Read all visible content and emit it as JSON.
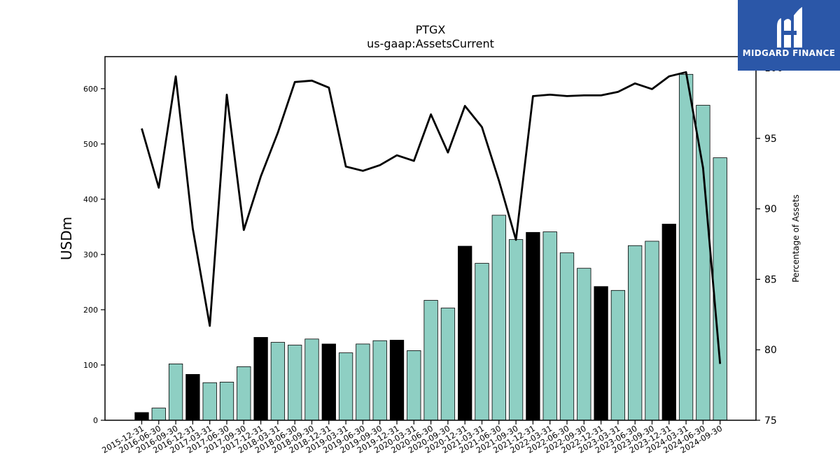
{
  "chart_data": {
    "type": "bar+line",
    "title": "PTGX",
    "subtitle": "us-gaap:AssetsCurrent",
    "ylabel": "USDm",
    "y2label": "Percentage of Assets",
    "ylim": [
      0,
      658
    ],
    "y2lim": [
      75,
      100.8
    ],
    "yticks": [
      0,
      100,
      200,
      300,
      400,
      500,
      600
    ],
    "y2ticks": [
      75,
      80,
      85,
      90,
      95,
      100
    ],
    "categories": [
      "2015-12-31",
      "2016-06-30",
      "2016-09-30",
      "2016-12-31",
      "2017-03-31",
      "2017-06-30",
      "2017-09-30",
      "2017-12-31",
      "2018-03-31",
      "2018-06-30",
      "2018-09-30",
      "2018-12-31",
      "2019-03-31",
      "2019-06-30",
      "2019-09-30",
      "2019-12-31",
      "2020-03-31",
      "2020-06-30",
      "2020-09-30",
      "2020-12-31",
      "2021-03-31",
      "2021-06-30",
      "2021-09-30",
      "2021-12-31",
      "2022-03-31",
      "2022-06-30",
      "2022-09-30",
      "2022-12-31",
      "2023-03-31",
      "2023-06-30",
      "2023-09-30",
      "2023-12-31",
      "2024-03-31",
      "2024-06-30",
      "2024-09-30"
    ],
    "series": [
      {
        "kind": "bar",
        "values": [
          14,
          22,
          102,
          83,
          68,
          69,
          97,
          150,
          141,
          136,
          147,
          138,
          122,
          138,
          144,
          145,
          126,
          217,
          203,
          315,
          284,
          371,
          327,
          340,
          341,
          303,
          275,
          242,
          235,
          316,
          324,
          355,
          626,
          570,
          475
        ],
        "highlight": [
          true,
          false,
          false,
          true,
          false,
          false,
          false,
          true,
          false,
          false,
          false,
          true,
          false,
          false,
          false,
          true,
          false,
          false,
          false,
          true,
          false,
          false,
          false,
          true,
          false,
          false,
          false,
          true,
          false,
          false,
          false,
          true,
          false,
          false,
          false
        ]
      },
      {
        "kind": "line",
        "axis": "right",
        "values": [
          95.7,
          91.5,
          99.4,
          88.6,
          81.7,
          98.1,
          88.5,
          92.3,
          95.4,
          99.0,
          99.1,
          98.6,
          93.0,
          92.7,
          93.1,
          93.8,
          93.4,
          96.7,
          94.0,
          97.3,
          95.8,
          92.0,
          87.8,
          98.0,
          98.1,
          98.0,
          98.05,
          98.05,
          98.3,
          98.9,
          98.5,
          99.4,
          99.7,
          92.9,
          79.0
        ]
      }
    ],
    "colors": {
      "bar": "#8ecfc3",
      "bar_highlight": "#000000",
      "line": "#000000"
    }
  },
  "branding": {
    "name": "MIDGARD FINANCE",
    "background": "#2b57a8"
  }
}
